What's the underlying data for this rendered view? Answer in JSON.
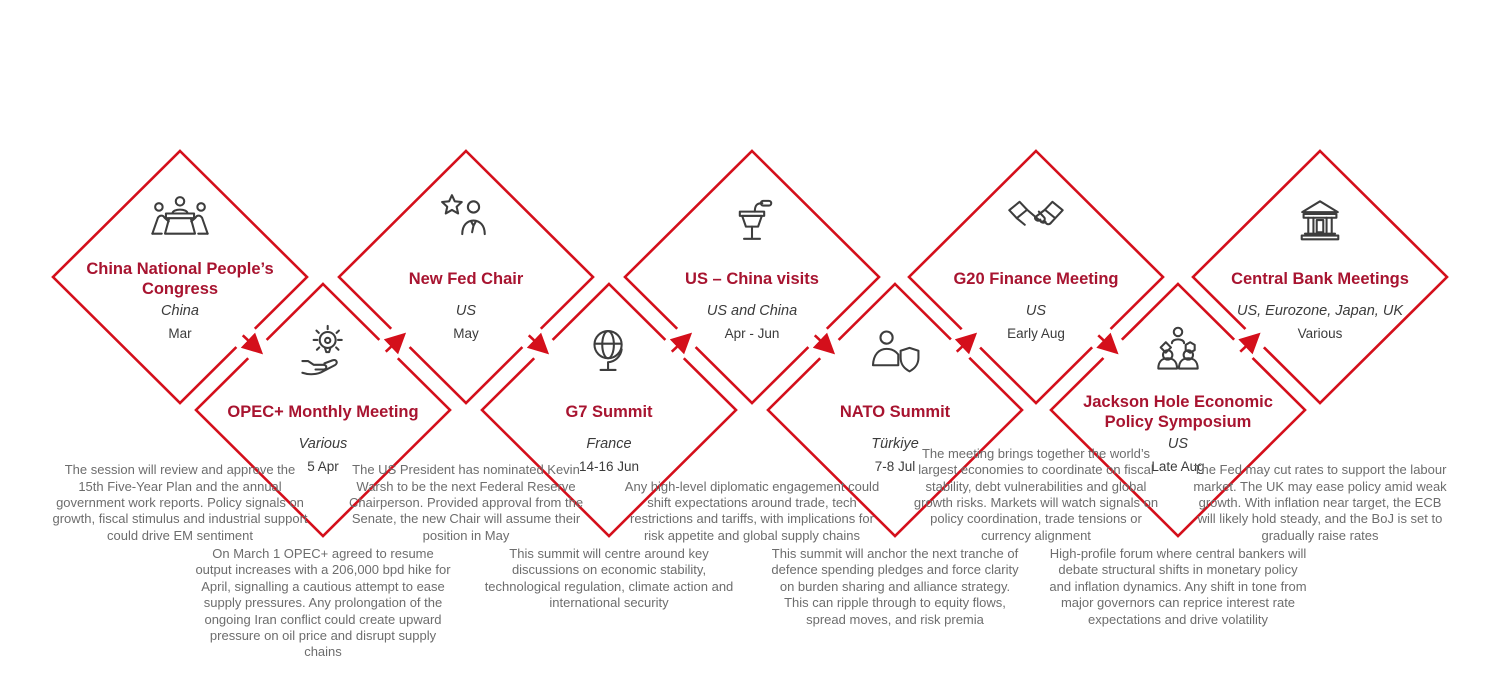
{
  "colors": {
    "accent_red": "#d40f1b",
    "title_red": "#a81430",
    "icon_gray": "#3d3d3d",
    "text_gray": "#6d6d6d"
  },
  "events": [
    {
      "id": "china-npc",
      "row": "top",
      "title": "China National People’s Congress",
      "location": "China",
      "date": "Mar",
      "icon": "meeting-table-icon",
      "description": "The session will review and approve the 15th Five-Year Plan and the annual government work reports. Policy signals on growth, fiscal stimulus and industrial support could drive EM sentiment"
    },
    {
      "id": "opec-monthly-meeting",
      "row": "bottom",
      "title": "OPEC+ Monthly Meeting",
      "location": "Various",
      "date": "5 Apr",
      "icon": "lightbulb-hand-icon",
      "description": "On March 1 OPEC+ agreed to resume output increases with a 206,000 bpd hike for April, signalling a cautious attempt to ease supply pressures. Any prolongation of the ongoing Iran conflict could create upward pressure on oil price and disrupt supply chains"
    },
    {
      "id": "new-fed-chair",
      "row": "top",
      "title": "New Fed Chair",
      "location": "US",
      "date": "May",
      "icon": "person-star-icon",
      "description": "The US President has nominated Kevin Warsh to be the next Federal Reserve Chairperson. Provided approval from the Senate, the new Chair will assume their position in May"
    },
    {
      "id": "g7-summit",
      "row": "bottom",
      "title": "G7 Summit",
      "location": "France",
      "date": "14-16 Jun",
      "icon": "globe-icon",
      "description": "This summit will centre around key discussions on economic stability, technological regulation, climate action and international security"
    },
    {
      "id": "us-china-visits",
      "row": "top",
      "title": "US – China visits",
      "location": "US and China",
      "date": "Apr - Jun",
      "icon": "podium-icon",
      "description": "Any high-level diplomatic engagement could shift expectations around trade, tech restrictions and tariffs, with implications for risk appetite and global supply chains"
    },
    {
      "id": "nato-summit",
      "row": "bottom",
      "title": "NATO Summit",
      "location": "Türkiye",
      "date": "7-8 Jul",
      "icon": "person-shield-icon",
      "description": "This summit will anchor the next tranche of defence spending pledges and force clarity on burden sharing and alliance strategy. This can ripple through to equity flows, spread moves, and risk premia"
    },
    {
      "id": "g20-finance-meeting",
      "row": "top",
      "title": "G20 Finance Meeting",
      "location": "US",
      "date": "Early Aug",
      "icon": "handshake-icon",
      "description": "The meeting brings together the world’s largest economies to coordinate on fiscal stability, debt vulnerabilities and global growth risks. Markets will watch signals on policy coordination, trade tensions or currency alignment"
    },
    {
      "id": "jackson-hole-symposium",
      "row": "bottom",
      "title": "Jackson Hole Economic Policy Symposium",
      "location": "US",
      "date": "Late Aug",
      "icon": "people-network-icon",
      "description": "High-profile forum where central bankers will debate structural shifts in monetary policy and inflation dynamics. Any shift in tone from major governors can reprice interest rate expectations and drive volatility"
    },
    {
      "id": "central-bank-meetings",
      "row": "top",
      "title": "Central Bank Meetings",
      "location": "US, Eurozone, Japan, UK",
      "date": "Various",
      "icon": "bank-icon",
      "description": "The Fed may cut rates to support the labour market. The UK may ease policy amid weak growth. With inflation near target, the ECB will likely hold steady, and the BoJ is set to gradually raise rates"
    }
  ]
}
